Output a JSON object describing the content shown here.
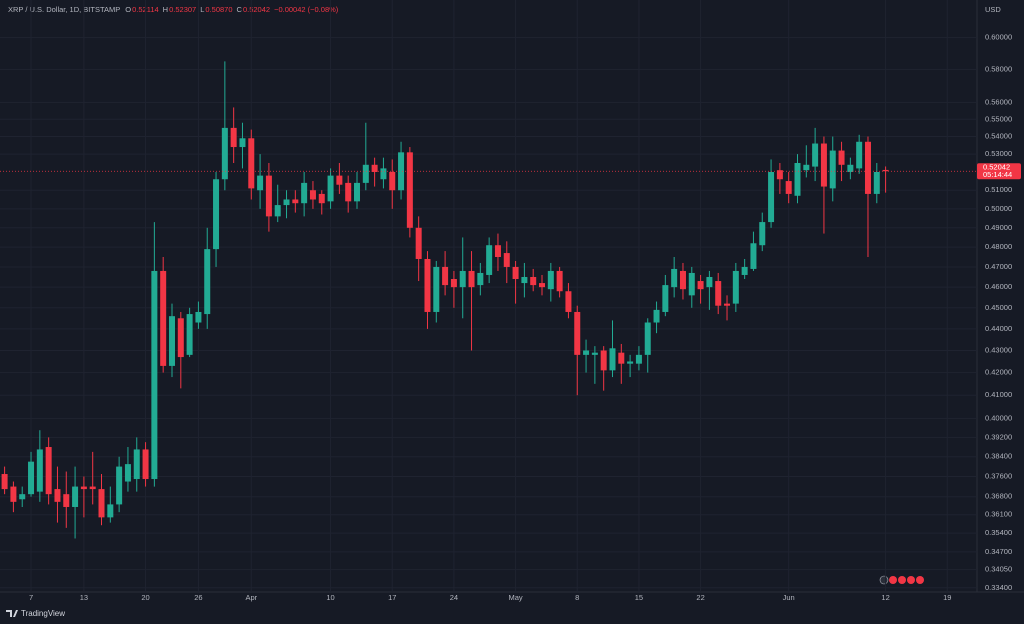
{
  "header": {
    "symbol": "XRP / U.S. Dollar, 1D, BITSTAMP",
    "ohlc": [
      {
        "key": "O",
        "value": "0.52114"
      },
      {
        "key": "H",
        "value": "0.52307"
      },
      {
        "key": "L",
        "value": "0.50870"
      },
      {
        "key": "C",
        "value": "0.52042"
      }
    ],
    "change": "−0.00042 (−0.08%)"
  },
  "brand": "TradingView",
  "chart_data": {
    "type": "candlestick",
    "log_scale": true,
    "grid": true,
    "y_unit": "USD",
    "up_color": "#22ab94",
    "down_color": "#f23645",
    "price_tag": {
      "price": "0.52042",
      "countdown": "05:14:44"
    },
    "categories": [
      null,
      null,
      null,
      "7",
      null,
      null,
      null,
      null,
      null,
      "13",
      null,
      null,
      null,
      null,
      null,
      null,
      "20",
      null,
      null,
      null,
      null,
      null,
      "26",
      null,
      null,
      null,
      null,
      null,
      "Apr",
      null,
      null,
      null,
      null,
      null,
      null,
      null,
      null,
      "10",
      null,
      null,
      null,
      null,
      null,
      null,
      "17",
      null,
      null,
      null,
      null,
      null,
      null,
      "24",
      null,
      null,
      null,
      null,
      null,
      null,
      "May",
      null,
      null,
      null,
      null,
      null,
      null,
      "8",
      null,
      null,
      null,
      null,
      null,
      null,
      "15",
      null,
      null,
      null,
      null,
      null,
      null,
      "22",
      null,
      null,
      null,
      null,
      null,
      null,
      null,
      null,
      null,
      "Jun",
      null,
      null,
      null,
      null,
      null,
      null,
      null,
      null,
      null,
      null,
      "12",
      null,
      null,
      null,
      null,
      null,
      null,
      "19"
    ],
    "open": [
      0.377,
      0.372,
      0.367,
      0.369,
      0.37,
      0.388,
      0.371,
      0.369,
      0.364,
      0.372,
      0.372,
      0.371,
      0.36,
      0.365,
      0.374,
      0.375,
      0.387,
      0.375,
      0.468,
      0.423,
      0.445,
      0.428,
      0.443,
      0.447,
      0.479,
      0.516,
      0.545,
      0.534,
      0.539,
      0.51,
      0.518,
      0.496,
      0.502,
      0.505,
      0.503,
      0.51,
      0.508,
      0.504,
      0.518,
      0.514,
      0.504,
      0.514,
      0.524,
      0.516,
      0.52,
      0.51,
      0.531,
      0.49,
      0.474,
      0.448,
      0.47,
      0.464,
      0.46,
      0.468,
      0.461,
      0.466,
      0.481,
      0.477,
      0.47,
      0.462,
      0.465,
      0.462,
      0.459,
      0.468,
      0.458,
      0.448,
      0.428,
      0.428,
      0.43,
      0.421,
      0.429,
      0.424,
      0.424,
      0.428,
      0.443,
      0.448,
      0.46,
      0.468,
      0.456,
      0.463,
      0.46,
      0.463,
      0.452,
      0.452,
      0.466,
      0.469,
      0.481,
      0.493,
      0.521,
      0.515,
      0.507,
      0.521,
      0.523,
      0.536,
      0.511,
      0.532,
      0.52,
      0.522,
      0.537,
      0.508,
      0.52114,
      null,
      null,
      null,
      null,
      null,
      null,
      null
    ],
    "high": [
      0.38,
      0.374,
      0.372,
      0.386,
      0.395,
      0.392,
      0.38,
      0.378,
      0.38,
      0.376,
      0.386,
      0.377,
      0.372,
      0.384,
      0.388,
      0.392,
      0.39,
      0.493,
      0.475,
      0.452,
      0.448,
      0.45,
      0.453,
      0.49,
      0.52,
      0.585,
      0.557,
      0.548,
      0.544,
      0.53,
      0.525,
      0.513,
      0.51,
      0.51,
      0.52,
      0.515,
      0.51,
      0.522,
      0.525,
      0.518,
      0.52,
      0.548,
      0.528,
      0.528,
      0.527,
      0.537,
      0.534,
      0.496,
      0.478,
      0.473,
      0.478,
      0.468,
      0.485,
      0.478,
      0.472,
      0.485,
      0.487,
      0.483,
      0.473,
      0.472,
      0.469,
      0.466,
      0.472,
      0.47,
      0.462,
      0.451,
      0.435,
      0.432,
      0.432,
      0.444,
      0.433,
      0.428,
      0.432,
      0.445,
      0.453,
      0.466,
      0.475,
      0.472,
      0.47,
      0.466,
      0.468,
      0.467,
      0.456,
      0.472,
      0.474,
      0.488,
      0.498,
      0.527,
      0.525,
      0.52,
      0.53,
      0.535,
      0.545,
      0.54,
      0.54,
      0.537,
      0.528,
      0.541,
      0.54,
      0.525,
      0.52307,
      null,
      null,
      null,
      null,
      null,
      null,
      null
    ],
    "low": [
      0.369,
      0.362,
      0.364,
      0.368,
      0.366,
      0.365,
      0.358,
      0.356,
      0.352,
      0.36,
      0.365,
      0.357,
      0.358,
      0.362,
      0.37,
      0.37,
      0.372,
      0.372,
      0.42,
      0.418,
      0.413,
      0.427,
      0.44,
      0.44,
      0.47,
      0.51,
      0.525,
      0.522,
      0.505,
      0.5,
      0.488,
      0.493,
      0.495,
      0.498,
      0.496,
      0.5,
      0.497,
      0.5,
      0.508,
      0.498,
      0.5,
      0.51,
      0.512,
      0.511,
      0.5,
      0.505,
      0.485,
      0.463,
      0.44,
      0.443,
      0.456,
      0.45,
      0.445,
      0.43,
      0.456,
      0.462,
      0.468,
      0.462,
      0.452,
      0.455,
      0.458,
      0.456,
      0.453,
      0.455,
      0.445,
      0.41,
      0.42,
      0.415,
      0.412,
      0.418,
      0.415,
      0.418,
      0.421,
      0.42,
      0.438,
      0.446,
      0.455,
      0.454,
      0.45,
      0.452,
      0.449,
      0.447,
      0.444,
      0.448,
      0.464,
      0.468,
      0.478,
      0.49,
      0.508,
      0.503,
      0.503,
      0.517,
      0.515,
      0.487,
      0.504,
      0.515,
      0.516,
      0.519,
      0.475,
      0.503,
      0.5087,
      null,
      null,
      null,
      null,
      null,
      null,
      null
    ],
    "close": [
      0.371,
      0.366,
      0.369,
      0.382,
      0.387,
      0.369,
      0.366,
      0.364,
      0.372,
      0.371,
      0.371,
      0.36,
      0.365,
      0.38,
      0.381,
      0.387,
      0.375,
      0.468,
      0.423,
      0.446,
      0.427,
      0.447,
      0.448,
      0.479,
      0.516,
      0.545,
      0.534,
      0.539,
      0.511,
      0.518,
      0.496,
      0.502,
      0.505,
      0.503,
      0.514,
      0.505,
      0.503,
      0.518,
      0.513,
      0.504,
      0.514,
      0.524,
      0.52,
      0.522,
      0.51,
      0.531,
      0.49,
      0.474,
      0.448,
      0.47,
      0.461,
      0.46,
      0.468,
      0.46,
      0.467,
      0.481,
      0.475,
      0.47,
      0.464,
      0.465,
      0.461,
      0.46,
      0.468,
      0.458,
      0.448,
      0.428,
      0.43,
      0.429,
      0.421,
      0.431,
      0.424,
      0.425,
      0.428,
      0.443,
      0.449,
      0.461,
      0.469,
      0.459,
      0.467,
      0.459,
      0.465,
      0.451,
      0.451,
      0.468,
      0.47,
      0.482,
      0.493,
      0.52,
      0.516,
      0.508,
      0.525,
      0.524,
      0.536,
      0.512,
      0.532,
      0.524,
      0.524,
      0.537,
      0.508,
      0.52,
      0.52042,
      null,
      null,
      null,
      null,
      null,
      null,
      null
    ],
    "ylim": [
      0.3325,
      0.6245
    ],
    "yticks": [
      {
        "value": 0.6,
        "label": "0.60000"
      },
      {
        "value": 0.58,
        "label": "0.58000"
      },
      {
        "value": 0.56,
        "label": "0.56000"
      },
      {
        "value": 0.55,
        "label": "0.55000"
      },
      {
        "value": 0.54,
        "label": "0.54000"
      },
      {
        "value": 0.53,
        "label": "0.53000"
      },
      {
        "value": 0.51,
        "label": "0.51000"
      },
      {
        "value": 0.5,
        "label": "0.50000"
      },
      {
        "value": 0.49,
        "label": "0.49000"
      },
      {
        "value": 0.48,
        "label": "0.48000"
      },
      {
        "value": 0.47,
        "label": "0.47000"
      },
      {
        "value": 0.46,
        "label": "0.46000"
      },
      {
        "value": 0.45,
        "label": "0.45000"
      },
      {
        "value": 0.44,
        "label": "0.44000"
      },
      {
        "value": 0.43,
        "label": "0.43000"
      },
      {
        "value": 0.42,
        "label": "0.42000"
      },
      {
        "value": 0.41,
        "label": "0.41000"
      },
      {
        "value": 0.4,
        "label": "0.40000"
      },
      {
        "value": 0.392,
        "label": "0.39200"
      },
      {
        "value": 0.384,
        "label": "0.38400"
      },
      {
        "value": 0.376,
        "label": "0.37600"
      },
      {
        "value": 0.368,
        "label": "0.36800"
      },
      {
        "value": 0.361,
        "label": "0.36100"
      },
      {
        "value": 0.354,
        "label": "0.35400"
      },
      {
        "value": 0.347,
        "label": "0.34700"
      },
      {
        "value": 0.3405,
        "label": "0.34050"
      },
      {
        "value": 0.334,
        "label": "0.33400"
      }
    ]
  }
}
